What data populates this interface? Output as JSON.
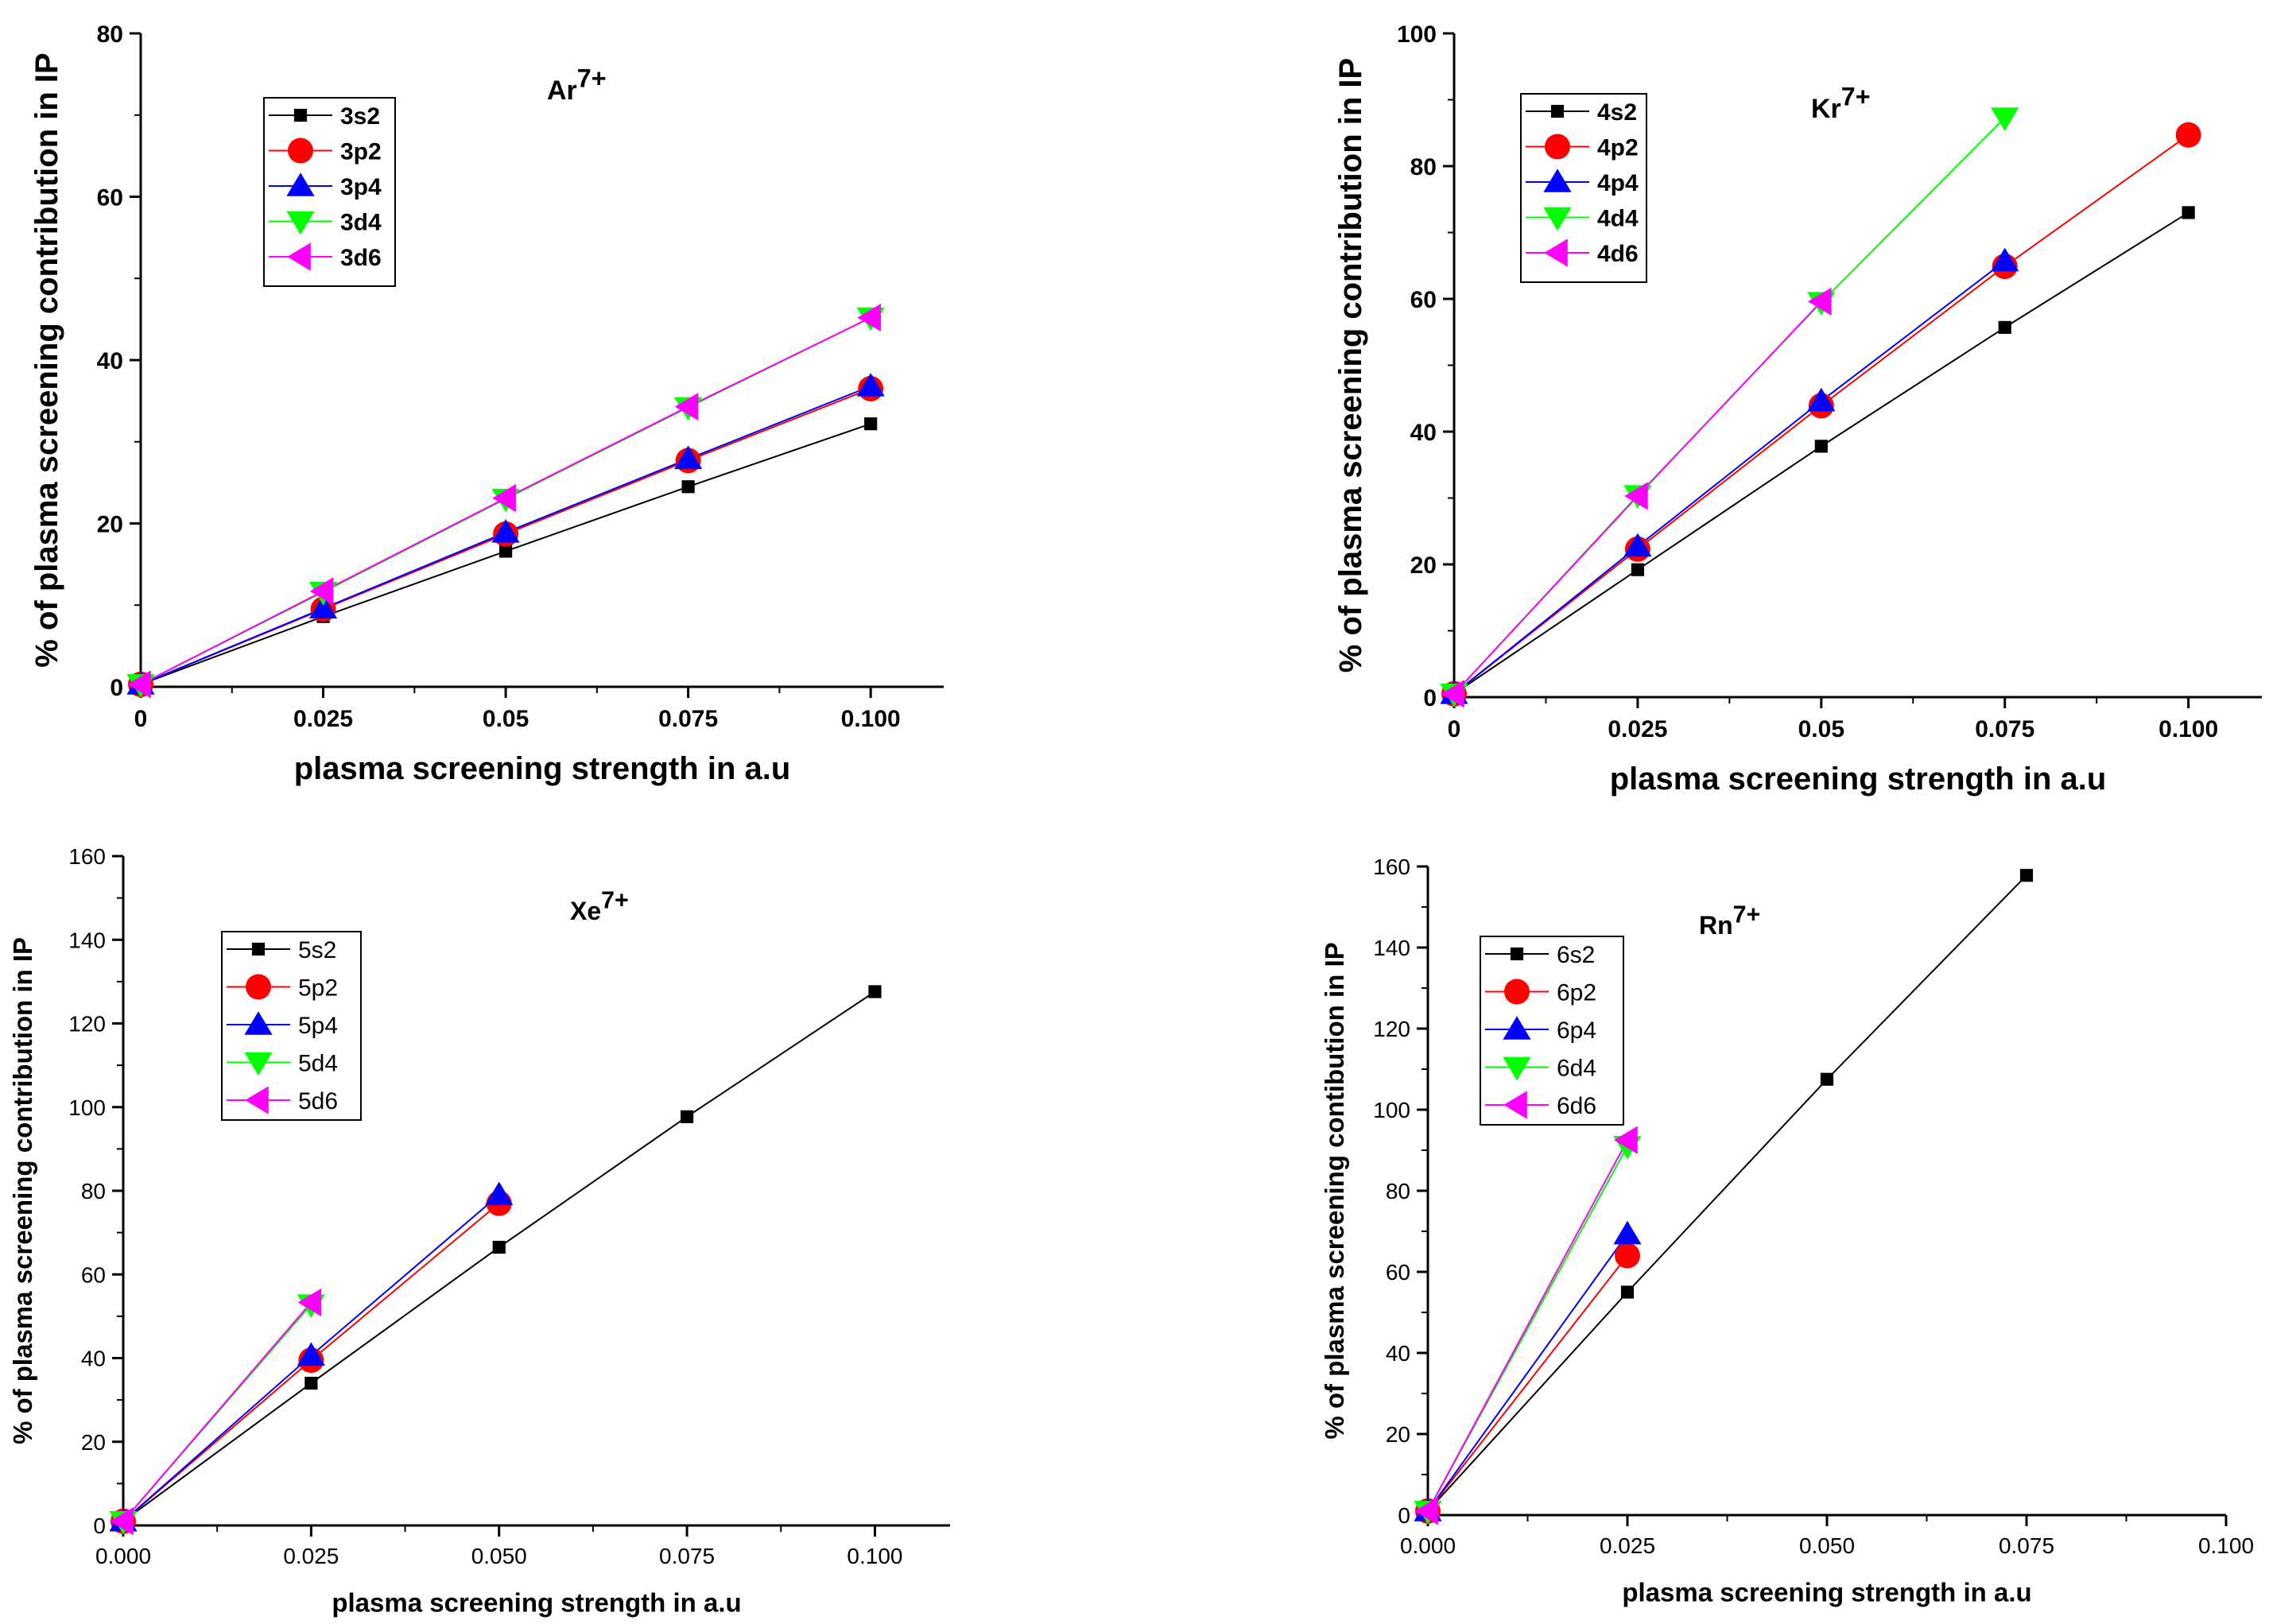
{
  "figure": {
    "panels": [
      {
        "id": "ar",
        "ion": "Ar",
        "ion_sup": "7+"
      },
      {
        "id": "kr",
        "ion": "Kr",
        "ion_sup": "7+"
      },
      {
        "id": "xe",
        "ion": "Xe",
        "ion_sup": "7+"
      },
      {
        "id": "rn",
        "ion": "Rn",
        "ion_sup": "7+"
      }
    ]
  },
  "chart_data": [
    {
      "type": "line",
      "title": "Ar7+",
      "xlabel": "plasma screening strength in a.u",
      "ylabel": "% of plasma screening contribution in IP",
      "xlim": [
        0,
        0.11
      ],
      "ylim": [
        0,
        80
      ],
      "xticks": [
        0,
        0.025,
        0.05,
        0.075,
        0.1
      ],
      "xtick_labels": [
        "0",
        "0.025",
        "0.05",
        "0.075",
        "0.100"
      ],
      "yticks": [
        0,
        20,
        40,
        60,
        80
      ],
      "ytick_labels": [
        "0",
        "20",
        "40",
        "60",
        "80"
      ],
      "legend_position": "top-left",
      "series": [
        {
          "name": "3s2",
          "marker": "square",
          "color": "#000000",
          "x": [
            0,
            0.025,
            0.05,
            0.075,
            0.1
          ],
          "values": [
            0.3,
            8.6,
            16.6,
            24.5,
            32.2
          ]
        },
        {
          "name": "3p2",
          "marker": "circle",
          "color": "#ff0000",
          "x": [
            0,
            0.025,
            0.05,
            0.075,
            0.1
          ],
          "values": [
            0.3,
            9.5,
            18.7,
            27.7,
            36.5
          ]
        },
        {
          "name": "3p4",
          "marker": "triangle-up",
          "color": "#0000ff",
          "x": [
            0,
            0.025,
            0.05,
            0.075,
            0.1
          ],
          "values": [
            0.3,
            9.6,
            18.9,
            27.9,
            36.8
          ]
        },
        {
          "name": "3d4",
          "marker": "triangle-down",
          "color": "#00ff00",
          "x": [
            0,
            0.025,
            0.05,
            0.075,
            0.1
          ],
          "values": [
            0.3,
            11.6,
            23,
            34.2,
            45.2
          ]
        },
        {
          "name": "3d6",
          "marker": "triangle-left",
          "color": "#ff00ff",
          "x": [
            0,
            0.025,
            0.05,
            0.075,
            0.1
          ],
          "values": [
            0.3,
            11.7,
            23.1,
            34.3,
            45.2
          ]
        }
      ]
    },
    {
      "type": "line",
      "title": "Kr7+",
      "xlabel": "plasma screening strength in a.u",
      "ylabel": "% of plasma screening contribution in IP",
      "xlim": [
        0,
        0.11
      ],
      "ylim": [
        0,
        100
      ],
      "xticks": [
        0,
        0.025,
        0.05,
        0.075,
        0.1
      ],
      "xtick_labels": [
        "0",
        "0.025",
        "0.05",
        "0.075",
        "0.100"
      ],
      "yticks": [
        0,
        20,
        40,
        60,
        80,
        100
      ],
      "ytick_labels": [
        "0",
        "20",
        "40",
        "60",
        "80",
        "100"
      ],
      "legend_position": "top-left",
      "series": [
        {
          "name": "4s2",
          "marker": "square",
          "color": "#000000",
          "x": [
            0,
            0.025,
            0.05,
            0.075,
            0.1
          ],
          "values": [
            0.5,
            19.2,
            37.8,
            55.7,
            73
          ]
        },
        {
          "name": "4p2",
          "marker": "circle",
          "color": "#ff0000",
          "x": [
            0,
            0.025,
            0.05,
            0.075,
            0.1
          ],
          "values": [
            0.5,
            22.3,
            43.9,
            64.9,
            84.7
          ]
        },
        {
          "name": "4p4",
          "marker": "triangle-up",
          "color": "#0000ff",
          "x": [
            0,
            0.025,
            0.05,
            0.075
          ],
          "values": [
            0.5,
            22.7,
            44.6,
            65.7
          ]
        },
        {
          "name": "4d4",
          "marker": "triangle-down",
          "color": "#00ff00",
          "x": [
            0,
            0.025,
            0.05,
            0.075
          ],
          "values": [
            0.5,
            30.4,
            59.5,
            87.3
          ]
        },
        {
          "name": "4d6",
          "marker": "triangle-left",
          "color": "#ff00ff",
          "x": [
            0,
            0.025,
            0.05
          ],
          "values": [
            0.5,
            30.3,
            59.6
          ]
        }
      ]
    },
    {
      "type": "line",
      "title": "Xe7+",
      "xlabel": "plasma screening strength in a.u",
      "ylabel": "% of plasma screening contribution in IP",
      "xlim": [
        0,
        0.11
      ],
      "ylim": [
        0,
        160
      ],
      "xticks": [
        0,
        0.025,
        0.05,
        0.075,
        0.1
      ],
      "xtick_labels": [
        "0.000",
        "0.025",
        "0.050",
        "0.075",
        "0.100"
      ],
      "yticks": [
        0,
        20,
        40,
        60,
        80,
        100,
        120,
        140,
        160
      ],
      "ytick_labels": [
        "0",
        "20",
        "40",
        "60",
        "80",
        "100",
        "120",
        "140",
        "160"
      ],
      "legend_position": "top-left",
      "series": [
        {
          "name": "5s2",
          "marker": "square",
          "color": "#000000",
          "x": [
            0,
            0.025,
            0.05,
            0.075,
            0.1
          ],
          "values": [
            1,
            34,
            66.5,
            97.7,
            127.6
          ]
        },
        {
          "name": "5p2",
          "marker": "circle",
          "color": "#ff0000",
          "x": [
            0,
            0.025,
            0.05
          ],
          "values": [
            1,
            39.5,
            77
          ]
        },
        {
          "name": "5p4",
          "marker": "triangle-up",
          "color": "#0000ff",
          "x": [
            0,
            0.025,
            0.05
          ],
          "values": [
            1,
            40.6,
            79
          ]
        },
        {
          "name": "5d4",
          "marker": "triangle-down",
          "color": "#00ff00",
          "x": [
            0,
            0.025
          ],
          "values": [
            1,
            52.8
          ]
        },
        {
          "name": "5d6",
          "marker": "triangle-left",
          "color": "#ff00ff",
          "x": [
            0,
            0.025
          ],
          "values": [
            1,
            53.3
          ]
        }
      ]
    },
    {
      "type": "line",
      "title": "Rn7+",
      "xlabel": "plasma screening strength in a.u",
      "ylabel": "% of plasma screening contibution in IP",
      "xlim": [
        0,
        0.1
      ],
      "ylim": [
        0,
        160
      ],
      "xticks": [
        0,
        0.025,
        0.05,
        0.075,
        0.1
      ],
      "xtick_labels": [
        "0.000",
        "0.025",
        "0.050",
        "0.075",
        "0.100"
      ],
      "yticks": [
        0,
        20,
        40,
        60,
        80,
        100,
        120,
        140,
        160
      ],
      "ytick_labels": [
        "0",
        "20",
        "40",
        "60",
        "80",
        "100",
        "120",
        "140",
        "160"
      ],
      "legend_position": "top-left",
      "series": [
        {
          "name": "6s2",
          "marker": "square",
          "color": "#000000",
          "x": [
            0,
            0.025,
            0.05,
            0.075
          ],
          "values": [
            1,
            55,
            107.5,
            157.8
          ]
        },
        {
          "name": "6p2",
          "marker": "circle",
          "color": "#ff0000",
          "x": [
            0,
            0.025
          ],
          "values": [
            1,
            64
          ]
        },
        {
          "name": "6p4",
          "marker": "triangle-up",
          "color": "#0000ff",
          "x": [
            0,
            0.025
          ],
          "values": [
            1,
            69.3
          ]
        },
        {
          "name": "6d4",
          "marker": "triangle-down",
          "color": "#00ff00",
          "x": [
            0,
            0.025
          ],
          "values": [
            1,
            91
          ]
        },
        {
          "name": "6d6",
          "marker": "triangle-left",
          "color": "#ff00ff",
          "x": [
            0,
            0.025
          ],
          "values": [
            1,
            92.5
          ]
        }
      ]
    }
  ]
}
